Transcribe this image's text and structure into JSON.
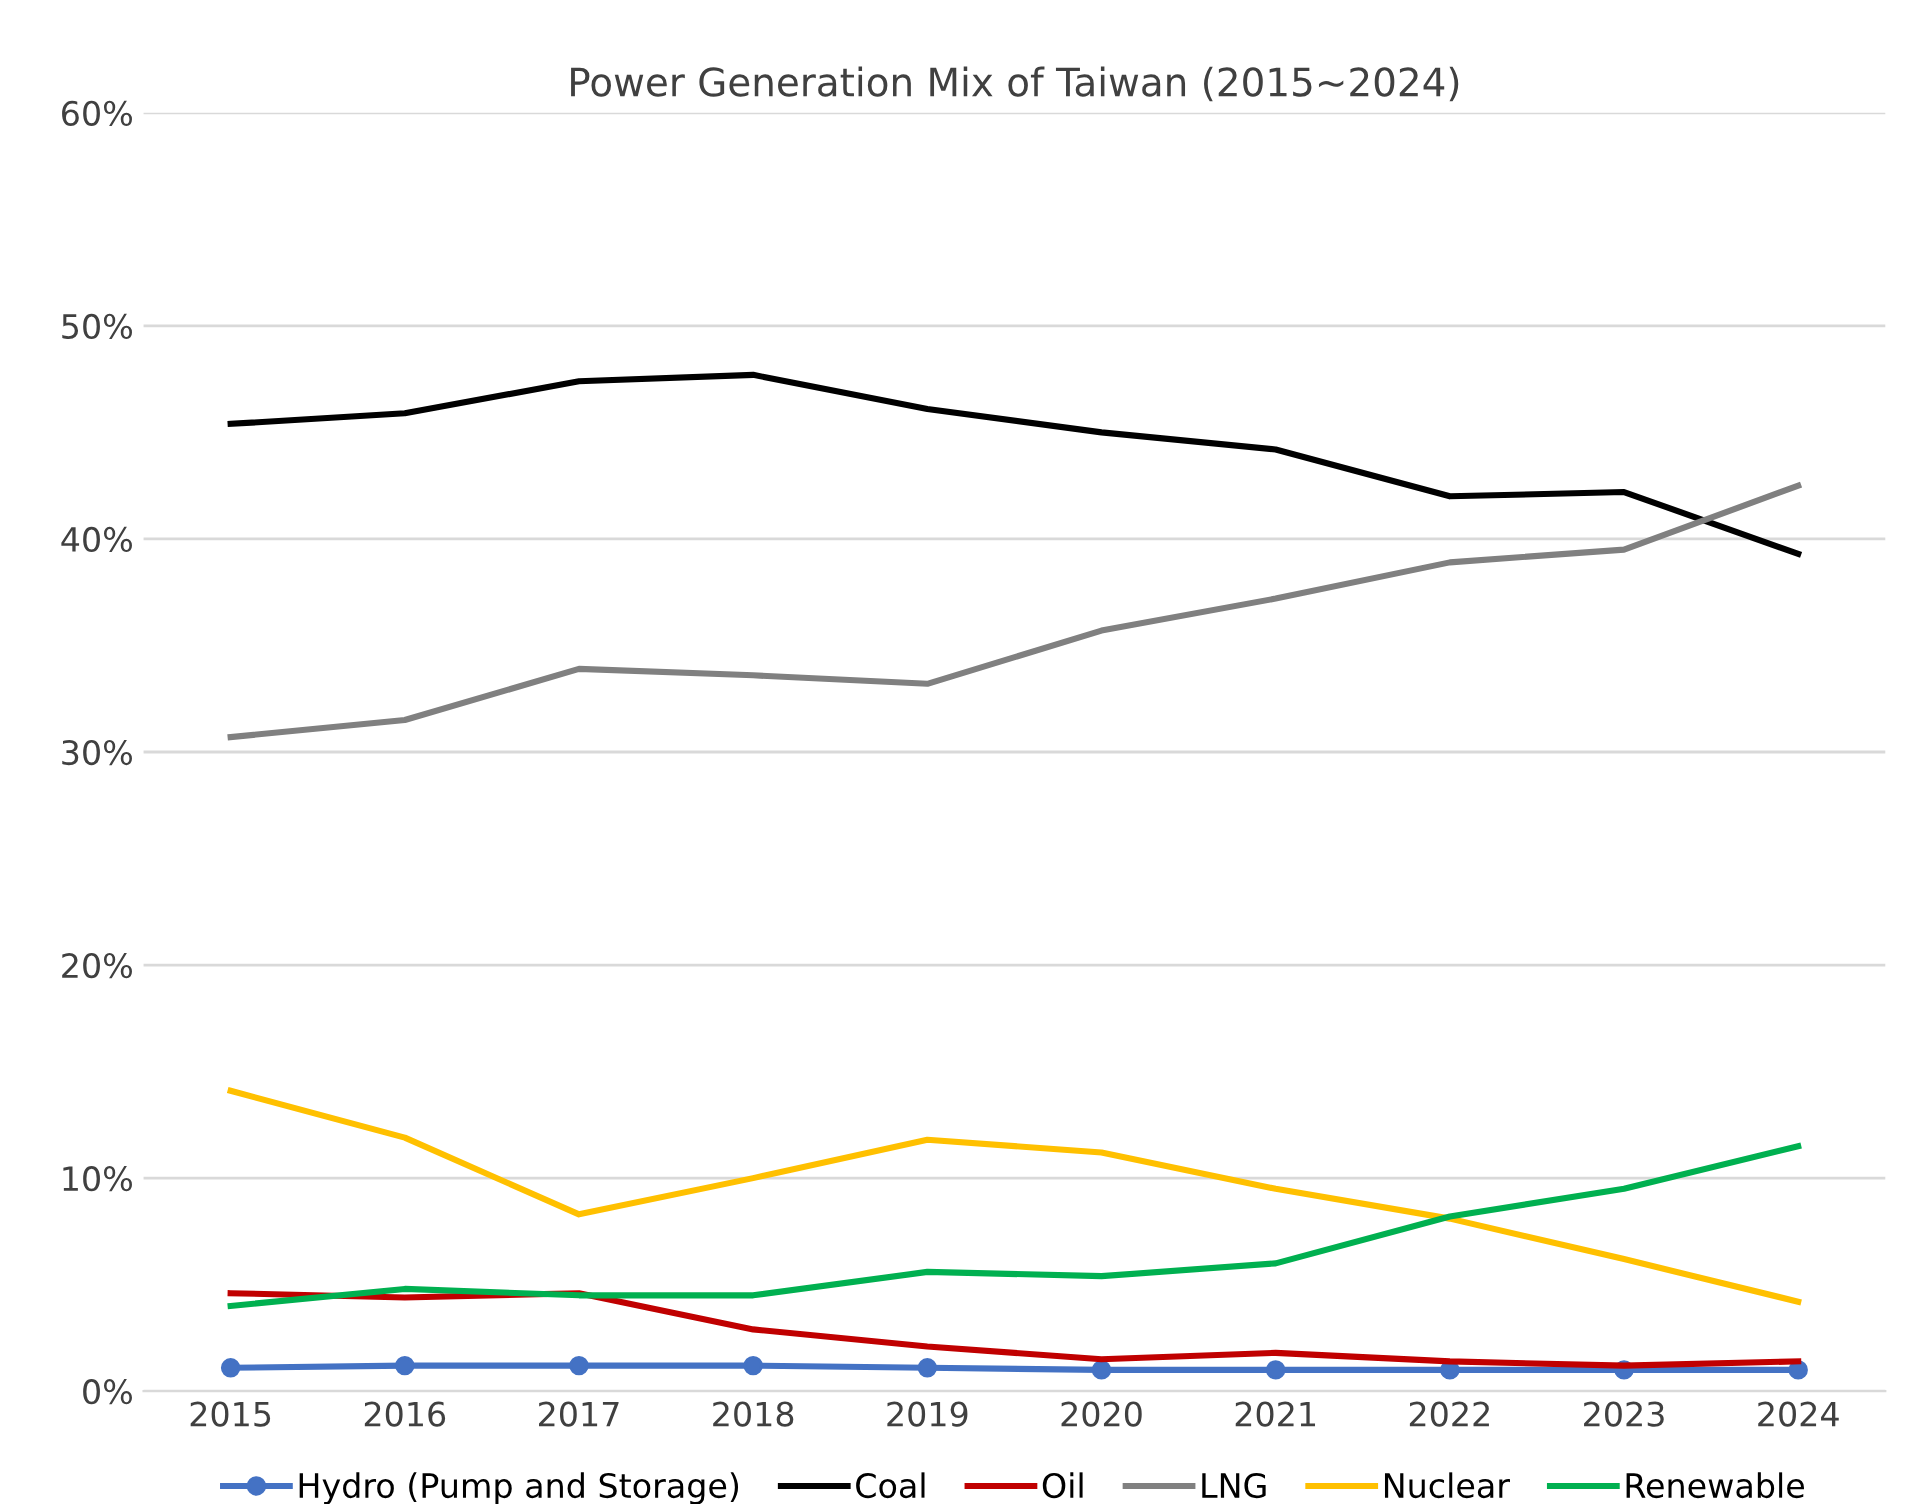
{
  "chart_data": {
    "type": "line",
    "title": "Power Generation Mix of Taiwan (2015~2024)",
    "categories": [
      "2015",
      "2016",
      "2017",
      "2018",
      "2019",
      "2020",
      "2021",
      "2022",
      "2023",
      "2024"
    ],
    "series": [
      {
        "name": "Hydro (Pump and Storage)",
        "color": "#4472c4",
        "marker": "circle",
        "values": [
          1.1,
          1.2,
          1.2,
          1.2,
          1.1,
          1.0,
          1.0,
          1.0,
          1.0,
          1.0
        ]
      },
      {
        "name": "Coal",
        "color": "#000000",
        "marker": "none",
        "values": [
          45.4,
          45.9,
          47.4,
          47.7,
          46.1,
          45.0,
          44.2,
          42.0,
          42.2,
          39.3
        ]
      },
      {
        "name": "Oil",
        "color": "#c00000",
        "marker": "none",
        "values": [
          4.6,
          4.4,
          4.6,
          2.9,
          2.1,
          1.5,
          1.8,
          1.4,
          1.2,
          1.4
        ]
      },
      {
        "name": "LNG",
        "color": "#808080",
        "marker": "none",
        "values": [
          30.7,
          31.5,
          33.9,
          33.6,
          33.2,
          35.7,
          37.2,
          38.9,
          39.5,
          42.5
        ]
      },
      {
        "name": "Nuclear",
        "color": "#ffc000",
        "marker": "none",
        "values": [
          14.1,
          11.9,
          8.3,
          10.0,
          11.8,
          11.2,
          9.5,
          8.1,
          6.2,
          4.2
        ]
      },
      {
        "name": "Renewable",
        "color": "#00b050",
        "marker": "none",
        "values": [
          4.0,
          4.8,
          4.5,
          4.5,
          5.6,
          5.4,
          6.0,
          8.2,
          9.5,
          11.5
        ]
      }
    ],
    "ylim": [
      0,
      60
    ],
    "yticks": [
      {
        "value": 0,
        "label": "0%"
      },
      {
        "value": 10,
        "label": "10%"
      },
      {
        "value": 20,
        "label": "20%"
      },
      {
        "value": 30,
        "label": "30%"
      },
      {
        "value": 40,
        "label": "40%"
      },
      {
        "value": 50,
        "label": "50%"
      },
      {
        "value": 60,
        "label": "60%"
      }
    ],
    "grid": "y",
    "legend": "bottom",
    "line_style": "solid"
  }
}
